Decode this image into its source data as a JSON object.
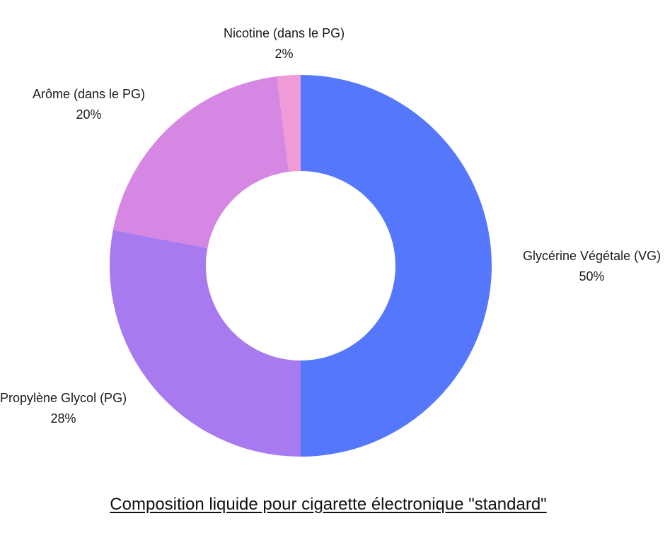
{
  "chart_data": {
    "type": "pie",
    "donut": true,
    "title": "Composition liquide pour cigarette électronique \"standard\"",
    "slices": [
      {
        "label": "Glycérine Végétale (VG)",
        "value": 50,
        "value_label": "50%",
        "color": "#5577fc"
      },
      {
        "label": "Propylène Glycol (PG)",
        "value": 28,
        "value_label": "28%",
        "color": "#a77bef"
      },
      {
        "label": "Arôme (dans le PG)",
        "value": 20,
        "value_label": "20%",
        "color": "#d587e3"
      },
      {
        "label": "Nicotine (dans le PG)",
        "value": 2,
        "value_label": "2%",
        "color": "#ef9bd8"
      }
    ],
    "start_angle": "12 o'clock",
    "direction": "clockwise",
    "legend": "none (labels beside slices)"
  }
}
